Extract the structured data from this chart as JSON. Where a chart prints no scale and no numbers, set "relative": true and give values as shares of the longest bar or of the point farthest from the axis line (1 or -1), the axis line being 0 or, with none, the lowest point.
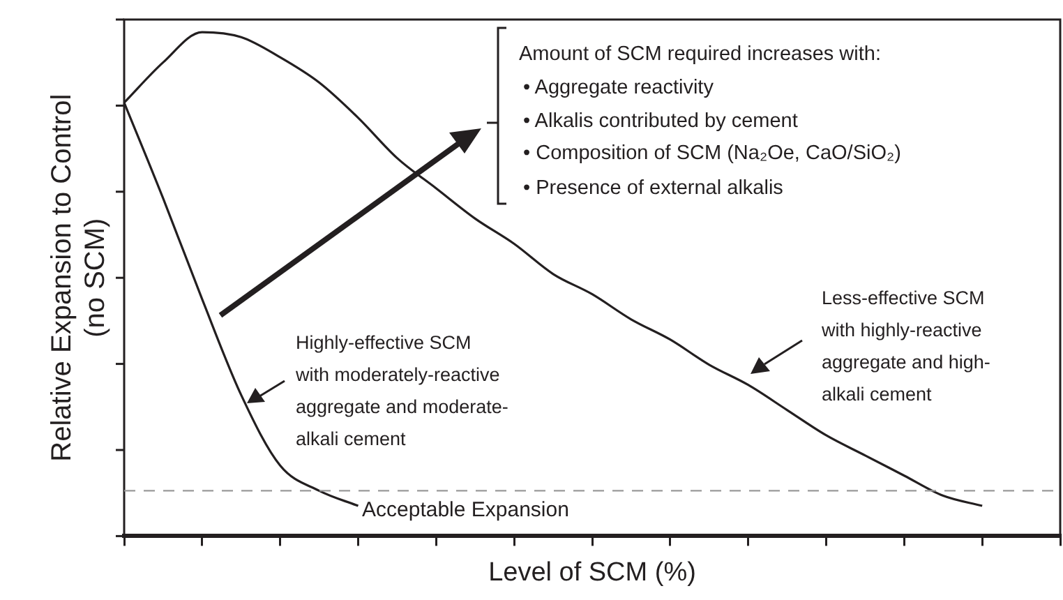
{
  "chart_data": {
    "type": "line",
    "relative": true,
    "xlabel": "Level of SCM (%)",
    "ylabel": "Relative Expansion to Control\n(no SCM)",
    "categories": [
      null,
      null,
      null,
      null,
      null,
      null,
      null,
      null,
      null,
      null,
      null,
      null,
      null,
      null,
      null,
      null,
      null,
      null,
      null,
      null,
      null,
      null,
      null,
      null,
      null
    ],
    "series": [
      {
        "color": "#231f20",
        "values": [
          0.86,
          0.94,
          1.0,
          0.99,
          0.95,
          0.9,
          0.83,
          0.75,
          0.69,
          0.63,
          0.58,
          0.52,
          0.48,
          0.43,
          0.39,
          0.34,
          0.3,
          0.25,
          0.2,
          0.16,
          0.12,
          0.08,
          0.06,
          null,
          null
        ]
      },
      {
        "color": "#231f20",
        "values": [
          0.86,
          0.67,
          0.47,
          0.28,
          0.14,
          0.09,
          0.06,
          null,
          null,
          null,
          null,
          null,
          null,
          null,
          null,
          null,
          null,
          null,
          null,
          null,
          null,
          null,
          null,
          null,
          null
        ]
      }
    ],
    "ref_lines": [
      {
        "axis": "y",
        "value": 0.09,
        "label": "Acceptable Expansion",
        "color": "#9a9a9a",
        "line_style": "dashed"
      }
    ],
    "annotations": [
      "Amount of SCM required increases with:",
      "• Aggregate reactivity",
      "• Alkalis contributed by cement",
      "• Composition of SCM (Na₂Oe, CaO/SiO₂)",
      "• Presence of external alkalis",
      "Less-effective SCM\nwith highly-reactive\naggregate and high-\nalkali cement",
      "Highly-effective SCM\nwith moderately-reactive\naggregate and moderate-\nalkali cement"
    ],
    "legend": false,
    "grid": false,
    "marker": "none",
    "line_style": "solid"
  }
}
